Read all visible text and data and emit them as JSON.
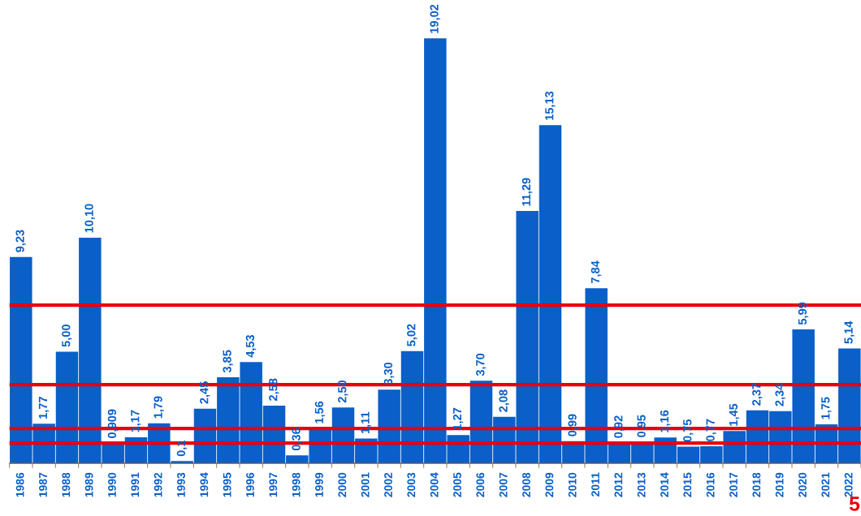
{
  "chart_data": {
    "type": "bar",
    "categories": [
      "1986",
      "1987",
      "1988",
      "1989",
      "1990",
      "1991",
      "1992",
      "1993",
      "1994",
      "1995",
      "1996",
      "1997",
      "1998",
      "1999",
      "2000",
      "2001",
      "2002",
      "2003",
      "2004",
      "2005",
      "2006",
      "2007",
      "2008",
      "2009",
      "2010",
      "2011",
      "2012",
      "2013",
      "2014",
      "2015",
      "2016",
      "2017",
      "2018",
      "2019",
      "2020",
      "2021",
      "2022"
    ],
    "values": [
      9.23,
      1.77,
      5.0,
      10.1,
      0.909,
      1.17,
      1.79,
      0.1,
      2.45,
      3.85,
      4.53,
      2.58,
      0.36,
      1.56,
      2.5,
      1.11,
      3.3,
      5.02,
      19.02,
      1.27,
      3.7,
      2.08,
      11.29,
      15.13,
      0.99,
      7.84,
      0.92,
      0.95,
      1.16,
      0.75,
      0.77,
      1.45,
      2.37,
      2.34,
      5.99,
      1.75,
      5.14
    ],
    "value_labels": [
      "9,23",
      "1,77",
      "5,00",
      "10,10",
      "0,909",
      "1,17",
      "1,79",
      "0,1",
      "2,45",
      "3,85",
      "4,53",
      "2,58",
      "0,36",
      "1,56",
      "2,50",
      "1,11",
      "3,30",
      "5,02",
      "19,02",
      "1,27",
      "3,70",
      "2,08",
      "11,29",
      "15,13",
      "0,99",
      "7,84",
      "0,92",
      "0,95",
      "1,16",
      "0,75",
      "0,77",
      "1,45",
      "2,37",
      "2,34",
      "5,99",
      "1,75",
      "5,14"
    ],
    "color": "#0a5fc8",
    "tick_labels": "x",
    "grid": false,
    "legend": false,
    "ref_lines": [
      {
        "axis": "y",
        "value": 7.08,
        "color": "#e8000b"
      },
      {
        "axis": "y",
        "value": 3.52,
        "color": "#e8000b"
      },
      {
        "axis": "y",
        "value": 1.56,
        "color": "#e8000b"
      },
      {
        "axis": "y",
        "value": 0.91,
        "color": "#e8000b"
      }
    ],
    "annotations": [
      "5"
    ]
  }
}
